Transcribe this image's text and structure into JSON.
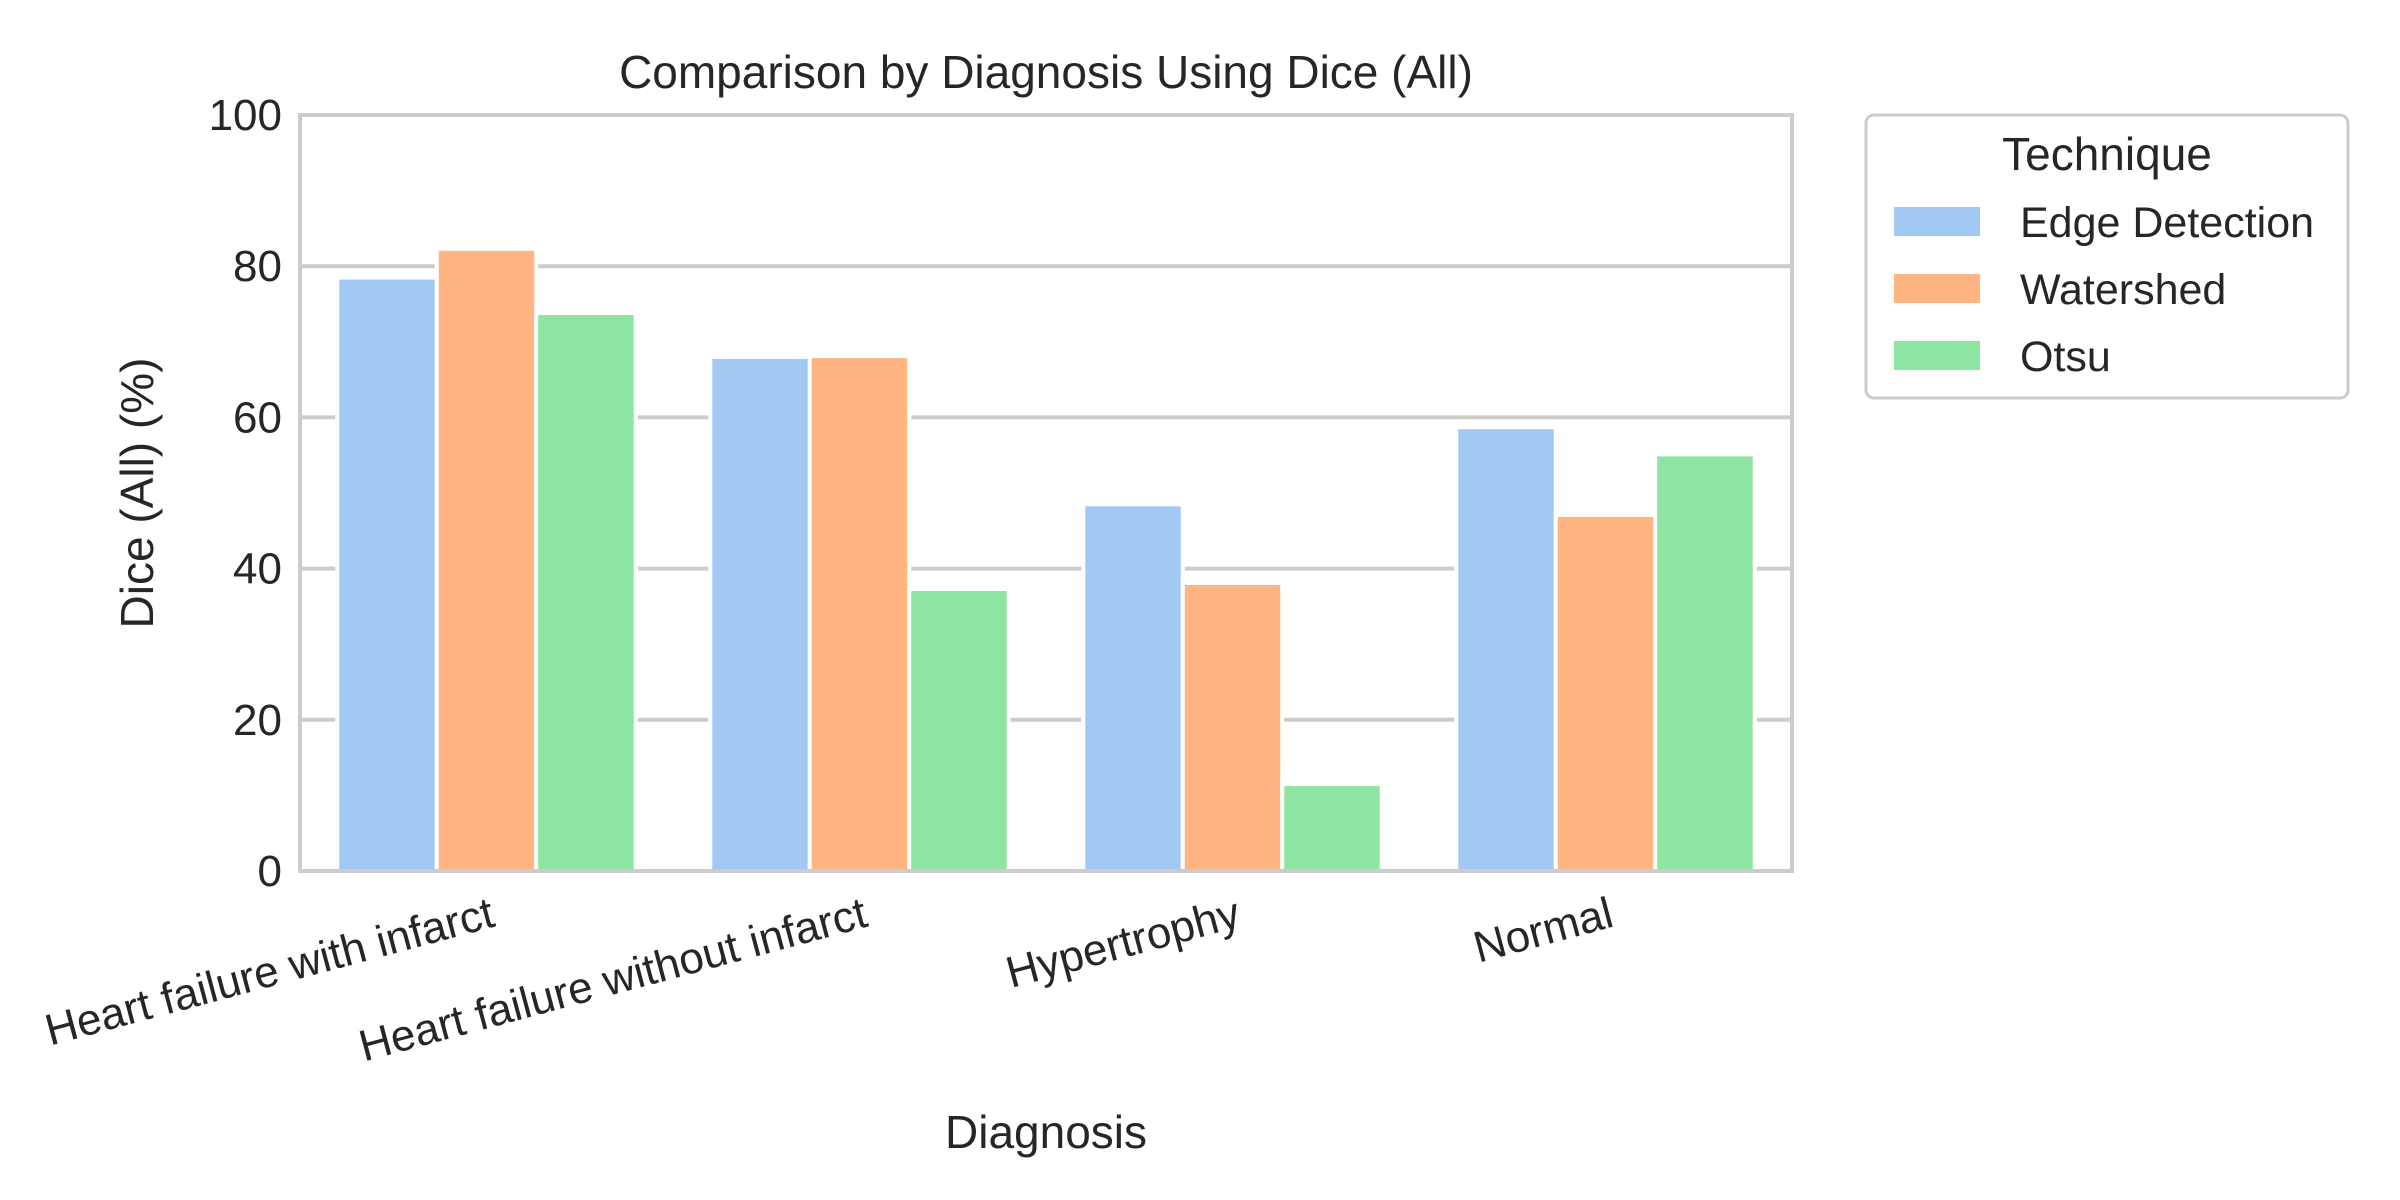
{
  "chart_data": {
    "type": "bar",
    "title": "Comparison by Diagnosis Using Dice (All)",
    "xlabel": "Diagnosis",
    "ylabel": "Dice (All) (%)",
    "ylim": [
      0,
      100
    ],
    "yticks": [
      "0",
      "20",
      "40",
      "60",
      "80",
      "100"
    ],
    "grid": "horizontal",
    "categories": [
      "Heart failure with infarct",
      "Heart failure without infarct",
      "Hypertrophy",
      "Normal"
    ],
    "series": [
      {
        "name": "Edge Detection",
        "color": "#a1c9f4",
        "values": [
          78.5,
          68.0,
          48.5,
          58.7
        ]
      },
      {
        "name": "Watershed",
        "color": "#ffb482",
        "values": [
          82.3,
          68.1,
          38.1,
          47.1
        ]
      },
      {
        "name": "Otsu",
        "color": "#8de5a1",
        "values": [
          73.8,
          37.3,
          11.5,
          55.1
        ]
      }
    ],
    "legend": {
      "title": "Technique",
      "placement": "outside-right-top"
    }
  }
}
